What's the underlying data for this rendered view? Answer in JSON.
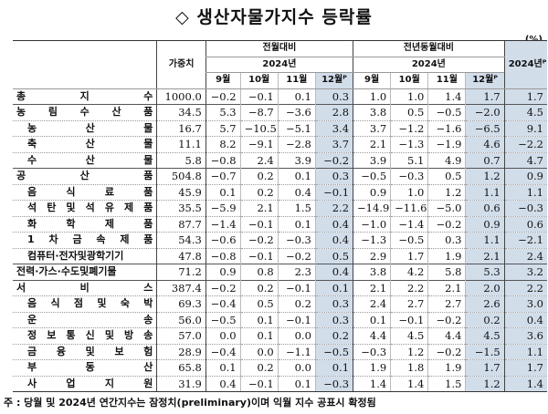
{
  "title": "◇ 생산자물가지수 등락률",
  "unit": "(%)",
  "header": {
    "weight": "가중치",
    "mom_group": "전월대비",
    "yoy_group": "전년동월대비",
    "year_mom": "2024년",
    "year_yoy": "2024년",
    "annual": "2024년ᴾ",
    "months": [
      "9월",
      "10월",
      "11월",
      "12월ᴾ"
    ]
  },
  "rows": [
    {
      "label": "총 지 수",
      "indent": false,
      "major": true,
      "weight": "1000.0",
      "mom": [
        "-0.2",
        "-0.1",
        "0.1",
        "0.3"
      ],
      "yoy": [
        "1.0",
        "1.0",
        "1.4",
        "1.7"
      ],
      "annual": "1.7"
    },
    {
      "label": "농 림 수 산 품",
      "indent": false,
      "major": true,
      "weight": "34.5",
      "mom": [
        "5.3",
        "-8.7",
        "-3.6",
        "2.8"
      ],
      "yoy": [
        "3.8",
        "0.5",
        "-0.5",
        "-2.0"
      ],
      "annual": "4.5"
    },
    {
      "label": "농 산 물",
      "indent": true,
      "weight": "16.7",
      "mom": [
        "5.7",
        "-10.5",
        "-5.1",
        "3.4"
      ],
      "yoy": [
        "3.7",
        "-1.2",
        "-1.6",
        "-6.5"
      ],
      "annual": "9.1"
    },
    {
      "label": "축 산 물",
      "indent": true,
      "weight": "11.1",
      "mom": [
        "8.2",
        "-9.1",
        "-2.8",
        "3.7"
      ],
      "yoy": [
        "2.1",
        "-1.3",
        "-1.9",
        "4.6"
      ],
      "annual": "-2.2"
    },
    {
      "label": "수 산 물",
      "indent": true,
      "weight": "5.8",
      "mom": [
        "-0.8",
        "2.4",
        "3.9",
        "-0.2"
      ],
      "yoy": [
        "3.9",
        "5.1",
        "4.9",
        "0.7"
      ],
      "annual": "4.7"
    },
    {
      "label": "공 산 품",
      "indent": false,
      "major": true,
      "weight": "504.8",
      "mom": [
        "-0.7",
        "0.2",
        "0.1",
        "0.3"
      ],
      "yoy": [
        "-0.5",
        "-0.3",
        "0.5",
        "1.2"
      ],
      "annual": "0.9"
    },
    {
      "label": "음 식 료 품",
      "indent": true,
      "weight": "45.9",
      "mom": [
        "0.1",
        "0.2",
        "0.4",
        "-0.1"
      ],
      "yoy": [
        "0.9",
        "1.0",
        "1.2",
        "1.1"
      ],
      "annual": "1.1"
    },
    {
      "label": "석 탄 및 석 유 제 품",
      "indent": true,
      "weight": "35.5",
      "mom": [
        "-5.9",
        "2.1",
        "1.5",
        "2.2"
      ],
      "yoy": [
        "-14.9",
        "-11.6",
        "-5.0",
        "0.6"
      ],
      "annual": "-0.3"
    },
    {
      "label": "화 학 제 품",
      "indent": true,
      "weight": "87.7",
      "mom": [
        "-1.4",
        "-0.1",
        "0.1",
        "0.4"
      ],
      "yoy": [
        "-1.0",
        "-1.4",
        "-0.2",
        "0.9"
      ],
      "annual": "0.6"
    },
    {
      "label": "1 차 금 속 제 품",
      "indent": true,
      "weight": "54.3",
      "mom": [
        "-0.6",
        "-0.2",
        "-0.3",
        "0.4"
      ],
      "yoy": [
        "-1.3",
        "-0.5",
        "0.3",
        "1.1"
      ],
      "annual": "-2.1"
    },
    {
      "label": "컴퓨터·전자및광학기기",
      "indent": true,
      "weight": "47.8",
      "mom": [
        "-0.8",
        "-0.1",
        "-0.2",
        "0.5"
      ],
      "yoy": [
        "2.9",
        "1.7",
        "1.9",
        "2.1"
      ],
      "annual": "2.4"
    },
    {
      "label": "전력·가스·수도및폐기물",
      "indent": false,
      "major": true,
      "weight": "71.2",
      "mom": [
        "0.9",
        "0.8",
        "2.3",
        "0.4"
      ],
      "yoy": [
        "3.8",
        "4.2",
        "5.8",
        "5.3"
      ],
      "annual": "3.2"
    },
    {
      "label": "서 비 스",
      "indent": false,
      "major": true,
      "weight": "387.4",
      "mom": [
        "-0.2",
        "0.2",
        "-0.1",
        "0.1"
      ],
      "yoy": [
        "2.1",
        "2.2",
        "2.1",
        "2.0"
      ],
      "annual": "2.2"
    },
    {
      "label": "음 식 점 및 숙 박",
      "indent": true,
      "weight": "69.3",
      "mom": [
        "-0.4",
        "0.5",
        "0.2",
        "0.3"
      ],
      "yoy": [
        "2.4",
        "2.7",
        "2.7",
        "2.6"
      ],
      "annual": "3.0"
    },
    {
      "label": "운 송",
      "indent": true,
      "weight": "56.0",
      "mom": [
        "-0.5",
        "0.1",
        "-0.1",
        "0.3"
      ],
      "yoy": [
        "0.1",
        "-0.1",
        "-0.2",
        "0.2"
      ],
      "annual": "0.4"
    },
    {
      "label": "정 보 통 신 및 방 송",
      "indent": true,
      "weight": "57.0",
      "mom": [
        "0.0",
        "0.1",
        "0.0",
        "0.2"
      ],
      "yoy": [
        "4.4",
        "4.5",
        "4.4",
        "4.5"
      ],
      "annual": "3.6"
    },
    {
      "label": "금 융 및 보 험",
      "indent": true,
      "weight": "28.9",
      "mom": [
        "-0.4",
        "0.0",
        "-1.1",
        "-0.5"
      ],
      "yoy": [
        "-0.3",
        "1.2",
        "-0.2",
        "-1.5"
      ],
      "annual": "1.1"
    },
    {
      "label": "부 동 산",
      "indent": true,
      "weight": "65.8",
      "mom": [
        "0.1",
        "0.2",
        "0.0",
        "0.1"
      ],
      "yoy": [
        "1.9",
        "1.8",
        "1.9",
        "1.7"
      ],
      "annual": "1.7"
    },
    {
      "label": "사 업 지 원",
      "indent": true,
      "weight": "31.9",
      "mom": [
        "0.4",
        "-0.1",
        "0.1",
        "-0.3"
      ],
      "yoy": [
        "1.4",
        "1.4",
        "1.5",
        "1.2"
      ],
      "annual": "1.4"
    }
  ],
  "note": "주 : 당월 및 2024년 연간지수는 잠정치(preliminary)이며 익월 지수 공표시 확정됨"
}
